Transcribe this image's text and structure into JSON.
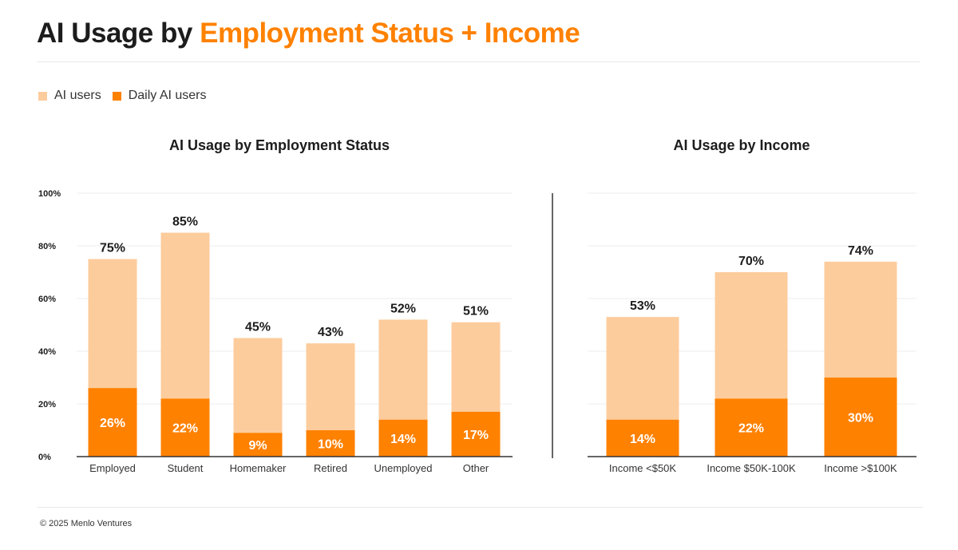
{
  "title": {
    "prefix": "AI Usage by",
    "accent": "Employment Status + Income"
  },
  "legend": [
    {
      "label": "AI users",
      "color": "#fdcc9c"
    },
    {
      "label": "Daily AI users",
      "color": "#ff8100"
    }
  ],
  "footer": "© 2025 Menlo Ventures",
  "colors": {
    "ai_users": "#fdcc9c",
    "daily_ai_users": "#ff8100",
    "grid": "#eeeeee",
    "axis": "#333333",
    "divider": "#333333"
  },
  "chart_data": [
    {
      "type": "bar",
      "title": "AI Usage by Employment Status",
      "categories": [
        "Employed",
        "Student",
        "Homemaker",
        "Retired",
        "Unemployed",
        "Other"
      ],
      "series": [
        {
          "name": "AI users",
          "values": [
            75,
            85,
            45,
            43,
            52,
            51
          ]
        },
        {
          "name": "Daily AI users",
          "values": [
            26,
            22,
            9,
            10,
            14,
            17
          ]
        }
      ],
      "ylim": [
        0,
        100
      ],
      "yticks": [
        "0%",
        "20%",
        "40%",
        "60%",
        "80%",
        "100%"
      ],
      "value_suffix": "%",
      "grid": true
    },
    {
      "type": "bar",
      "title": "AI Usage by Income",
      "categories": [
        "Income <$50K",
        "Income $50K-100K",
        "Income >$100K"
      ],
      "series": [
        {
          "name": "AI users",
          "values": [
            53,
            70,
            74
          ]
        },
        {
          "name": "Daily AI users",
          "values": [
            14,
            22,
            30
          ]
        }
      ],
      "ylim": [
        0,
        100
      ],
      "value_suffix": "%",
      "grid": true
    }
  ]
}
